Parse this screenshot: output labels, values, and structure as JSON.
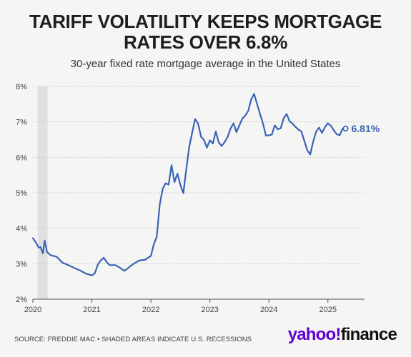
{
  "header": {
    "title_line1": "TARIFF VOLATILITY KEEPS MORTGAGE",
    "title_line2": "RATES OVER 6.8%",
    "subtitle": "30-year fixed rate mortgage average in the United States"
  },
  "footer": {
    "source": "SOURCE: FREDDIE MAC • SHADED AREAS INDICATE U.S. RECESSIONS",
    "logo_part1": "yahoo!",
    "logo_part2": "finance"
  },
  "colors": {
    "line": "#3a64b4",
    "recession": "#e0e0e0",
    "grid": "#cccccc",
    "logo_purple": "#5f01d1"
  },
  "chart_data": {
    "type": "line",
    "title": "TARIFF VOLATILITY KEEPS MORTGAGE RATES OVER 6.8%",
    "subtitle": "30-year fixed rate mortgage average in the United States",
    "xlabel": "",
    "ylabel": "",
    "xlim": [
      2020.0,
      2025.5
    ],
    "ylim": [
      2,
      8
    ],
    "x_ticks": [
      "2020",
      "2021",
      "2022",
      "2023",
      "2024",
      "2025"
    ],
    "x_tick_values": [
      2020,
      2021,
      2022,
      2023,
      2024,
      2025
    ],
    "y_ticks": [
      "2%",
      "3%",
      "4%",
      "5%",
      "6%",
      "7%",
      "8%"
    ],
    "y_tick_values": [
      2,
      3,
      4,
      5,
      6,
      7,
      8
    ],
    "grid": "horizontal",
    "recession_shading": [
      [
        2020.08,
        2020.25
      ]
    ],
    "end_label": "6.81%",
    "series": [
      {
        "x": [
          2020.0,
          2020.05,
          2020.1,
          2020.13,
          2020.17,
          2020.2,
          2020.24,
          2020.3,
          2020.4,
          2020.5,
          2020.6,
          2020.7,
          2020.8,
          2020.9,
          2021.0,
          2021.05,
          2021.1,
          2021.15,
          2021.2,
          2021.25,
          2021.3,
          2021.4,
          2021.5,
          2021.55,
          2021.6,
          2021.7,
          2021.8,
          2021.9,
          2022.0,
          2022.05,
          2022.1,
          2022.15,
          2022.2,
          2022.25,
          2022.3,
          2022.35,
          2022.4,
          2022.45,
          2022.5,
          2022.55,
          2022.6,
          2022.65,
          2022.7,
          2022.75,
          2022.8,
          2022.85,
          2022.9,
          2022.95,
          2023.0,
          2023.05,
          2023.1,
          2023.15,
          2023.2,
          2023.25,
          2023.3,
          2023.35,
          2023.4,
          2023.45,
          2023.5,
          2023.55,
          2023.6,
          2023.65,
          2023.7,
          2023.75,
          2023.8,
          2023.85,
          2023.9,
          2023.95,
          2024.0,
          2024.05,
          2024.1,
          2024.15,
          2024.2,
          2024.25,
          2024.3,
          2024.35,
          2024.4,
          2024.45,
          2024.5,
          2024.55,
          2024.6,
          2024.65,
          2024.7,
          2024.75,
          2024.8,
          2024.85,
          2024.9,
          2024.95,
          2025.0,
          2025.05,
          2025.1,
          2025.15,
          2025.2,
          2025.25,
          2025.3
        ],
        "values": [
          3.72,
          3.6,
          3.45,
          3.47,
          3.29,
          3.65,
          3.33,
          3.24,
          3.2,
          3.03,
          2.96,
          2.88,
          2.81,
          2.72,
          2.67,
          2.73,
          2.97,
          3.09,
          3.17,
          3.05,
          2.96,
          2.96,
          2.86,
          2.8,
          2.86,
          2.99,
          3.09,
          3.11,
          3.22,
          3.55,
          3.76,
          4.67,
          5.11,
          5.27,
          5.23,
          5.78,
          5.3,
          5.54,
          5.22,
          4.99,
          5.66,
          6.29,
          6.7,
          7.08,
          6.95,
          6.58,
          6.49,
          6.27,
          6.48,
          6.39,
          6.73,
          6.42,
          6.32,
          6.43,
          6.57,
          6.81,
          6.96,
          6.71,
          6.9,
          7.09,
          7.18,
          7.31,
          7.63,
          7.79,
          7.5,
          7.22,
          6.95,
          6.61,
          6.62,
          6.64,
          6.9,
          6.79,
          6.82,
          7.1,
          7.22,
          7.02,
          6.95,
          6.86,
          6.78,
          6.73,
          6.47,
          6.2,
          6.08,
          6.44,
          6.72,
          6.84,
          6.69,
          6.85,
          6.96,
          6.89,
          6.76,
          6.65,
          6.62,
          6.81,
          6.81
        ]
      }
    ]
  }
}
